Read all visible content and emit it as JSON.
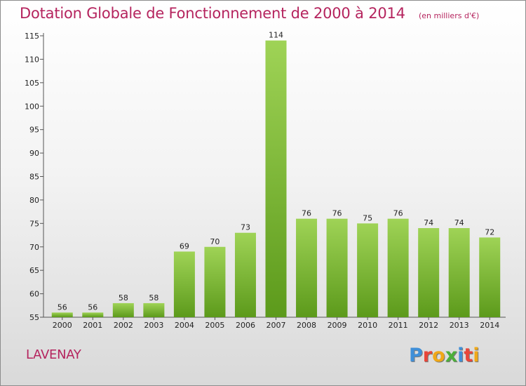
{
  "title": "Dotation Globale de Fonctionnement de 2000 à 2014",
  "subtitle": "(en milliers d'€)",
  "commune": "LAVENAY",
  "brand": {
    "text": "Proxiti",
    "letter_colors": [
      "#3f8fd8",
      "#e8463a",
      "#f0a818",
      "#4caf3a",
      "#3f8fd8",
      "#e8463a",
      "#f0a818"
    ]
  },
  "colors": {
    "bar_top": "#9fd356",
    "bar_bottom": "#5c9a1b",
    "title": "#b5245e"
  },
  "chart_data": {
    "type": "bar",
    "title": "Dotation Globale de Fonctionnement de 2000 à 2014",
    "subtitle": "(en milliers d'€)",
    "xlabel": "",
    "ylabel": "",
    "categories": [
      "2000",
      "2001",
      "2002",
      "2003",
      "2004",
      "2005",
      "2006",
      "2007",
      "2008",
      "2009",
      "2010",
      "2011",
      "2012",
      "2013",
      "2014"
    ],
    "values": [
      56,
      56,
      58,
      58,
      69,
      70,
      73,
      114,
      76,
      76,
      75,
      76,
      74,
      74,
      72
    ],
    "ylim": [
      55,
      115
    ],
    "yticks": [
      55,
      60,
      65,
      70,
      75,
      80,
      85,
      90,
      95,
      100,
      105,
      110,
      115
    ],
    "grid": false,
    "legend": "none"
  }
}
